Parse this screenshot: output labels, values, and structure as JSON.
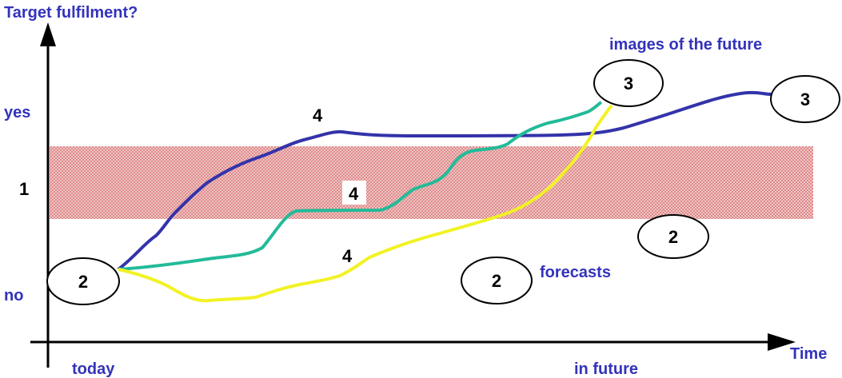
{
  "axes": {
    "y_title": "Target fulfilment?",
    "x_title": "Time",
    "y_top_label": "yes",
    "y_band_label": "1",
    "y_bottom_label": "no",
    "x_start_label": "today",
    "x_end_label": "in future"
  },
  "annotations": {
    "images_of_future": "images of the future",
    "forecasts": "forecasts"
  },
  "circles": {
    "start": "2",
    "forecast_low": "2",
    "forecast_mid": "2",
    "image_upper": "3",
    "image_right": "3"
  },
  "path_labels": {
    "blue": "4",
    "green": "4",
    "yellow": "4"
  },
  "colors": {
    "blue_path": "#3333aa",
    "green_path": "#22bb99",
    "yellow_path": "#f2f224",
    "band": "#e8a0a0",
    "label_blue": "#3333bb"
  }
}
